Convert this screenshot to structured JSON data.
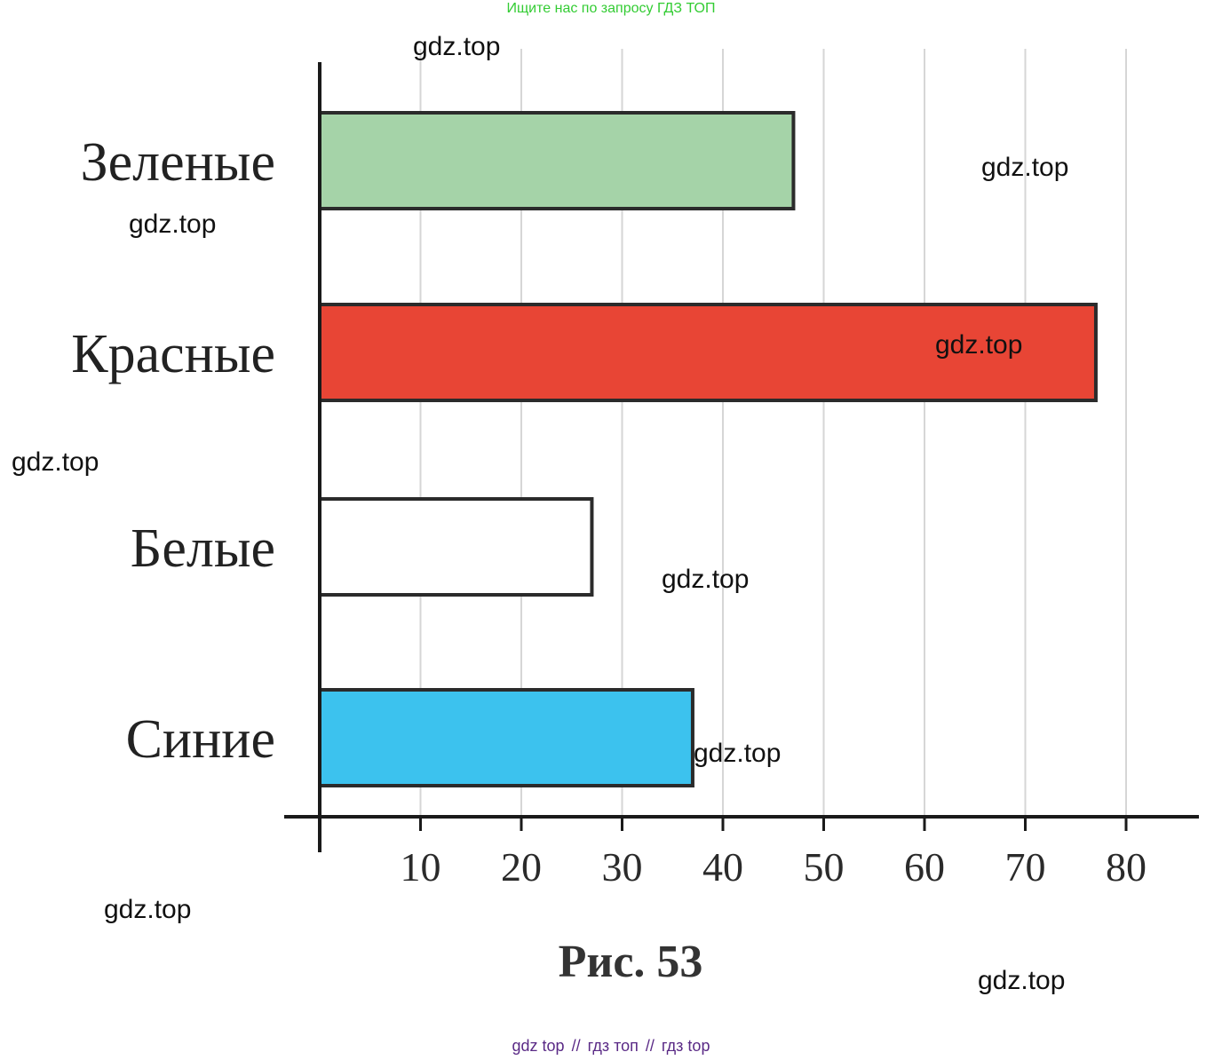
{
  "banner": "Ищите нас по запросу ГДЗ ТОП",
  "watermark": "gdz.top",
  "footer": {
    "a": "gdz top",
    "b": "гдз топ",
    "c": "гдз top",
    "separator": "//"
  },
  "chart_data": {
    "type": "bar",
    "orientation": "horizontal",
    "categories": [
      "Зеленые",
      "Красные",
      "Белые",
      "Синие"
    ],
    "values": [
      47,
      77,
      27,
      37
    ],
    "colors": [
      "#a5d3a8",
      "#e84535",
      "#ffffff",
      "#3cc2ee"
    ],
    "xticks": [
      "10",
      "20",
      "30",
      "40",
      "50",
      "60",
      "70",
      "80"
    ],
    "xlim": [
      0,
      85
    ],
    "grid": true,
    "caption": "Рис. 53"
  }
}
